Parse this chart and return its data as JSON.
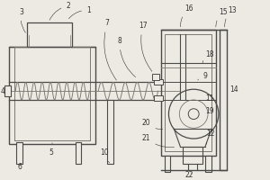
{
  "bg_color": "#ede9e3",
  "lc": "#7a7870",
  "dc": "#4a4a48",
  "label_color": "#333333",
  "label_fs": 5.5,
  "figsize": [
    3.0,
    2.0
  ],
  "dpi": 100
}
